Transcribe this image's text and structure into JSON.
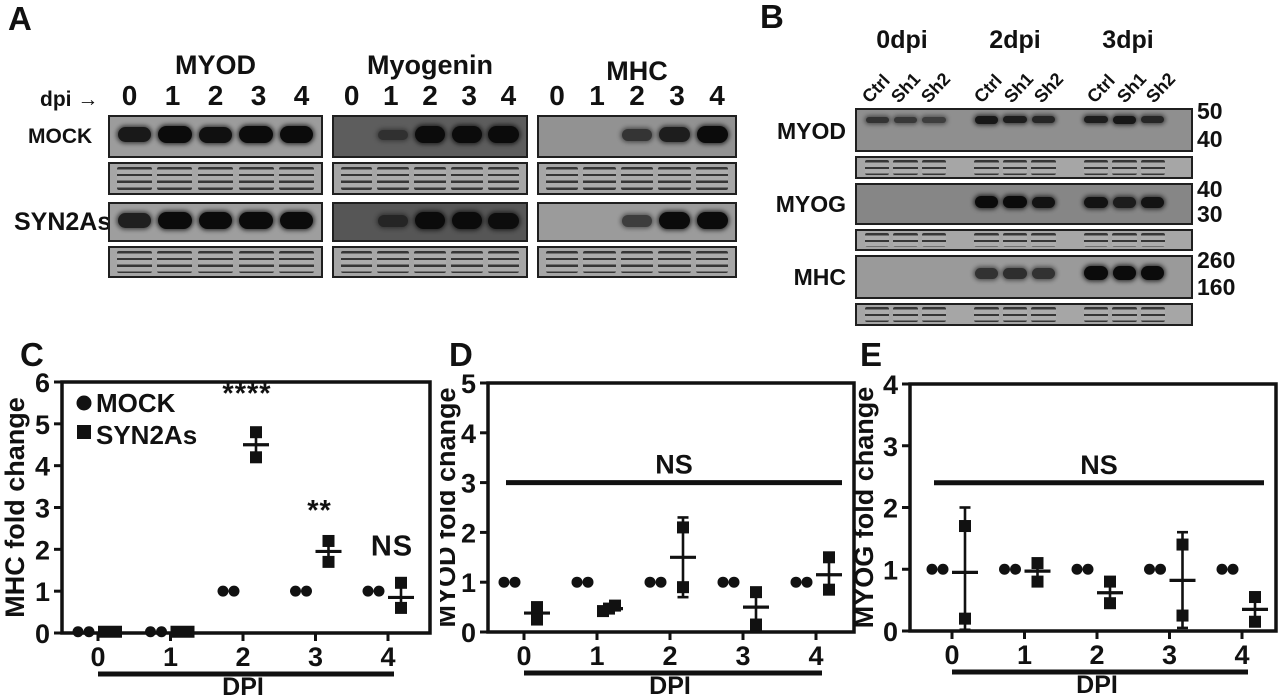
{
  "figure": {
    "panel_a": {
      "label": "A",
      "dpi_row_label": "dpi →",
      "lane_numbers": [
        "0",
        "1",
        "2",
        "3",
        "4"
      ],
      "row_labels": {
        "top": "MOCK",
        "bottom": "SYN2As"
      },
      "columns": [
        {
          "title": "MYOD",
          "mock": {
            "bg": "#9c9c9c",
            "bands": [
              0.85,
              1,
              0.95,
              1,
              1
            ]
          },
          "syn": {
            "bg": "#9e9e9e",
            "bands": [
              0.8,
              1,
              1,
              1,
              1
            ]
          }
        },
        {
          "title": "Myogenin",
          "mock": {
            "bg": "#5d5d5d",
            "bands": [
              0,
              0.35,
              1,
              1,
              1
            ]
          },
          "syn": {
            "bg": "#565656",
            "bands": [
              0,
              0.5,
              1,
              1,
              0.95
            ]
          }
        },
        {
          "title": "MHC",
          "mock": {
            "bg": "#929292",
            "bands": [
              0,
              0,
              0.55,
              0.8,
              1
            ]
          },
          "syn": {
            "bg": "#9b9b9b",
            "bands": [
              0,
              0,
              0.5,
              1,
              1
            ]
          }
        }
      ]
    },
    "panel_b": {
      "label": "B",
      "group_headers": [
        "0dpi",
        "2dpi",
        "3dpi"
      ],
      "lane_labels": [
        "Ctrl",
        "Sh1",
        "Sh2"
      ],
      "rows": [
        {
          "label": "MYOD",
          "mw": [
            "50",
            "40"
          ],
          "bg": "#8f8f8f",
          "band_pos": 0.24,
          "band_base": 7,
          "bands": [
            0.55,
            0.5,
            0.45,
            0.85,
            0.8,
            0.7,
            0.8,
            0.85,
            0.7
          ]
        },
        {
          "label": "MYOG",
          "mw": [
            "40",
            "30"
          ],
          "bg": "#868686",
          "band_pos": 0.45,
          "band_base": 10,
          "bands": [
            0,
            0,
            0,
            1,
            1,
            0.9,
            0.9,
            0.8,
            0.9
          ]
        },
        {
          "label": "MHC",
          "mw": [
            "260",
            "160"
          ],
          "bg": "#9a9a9a",
          "band_pos": 0.4,
          "band_base": 12,
          "bands": [
            0,
            0,
            0,
            0.6,
            0.65,
            0.6,
            1,
            1,
            1
          ]
        }
      ]
    }
  },
  "chart_data": [
    {
      "panel_label": "C",
      "type": "scatter",
      "ylabel": "MHC fold change",
      "xlabel": "DPI",
      "ylim": [
        0,
        6
      ],
      "yticks": [
        "0",
        "1",
        "2",
        "3",
        "4",
        "5",
        "6"
      ],
      "xticks": [
        "0",
        "1",
        "2",
        "3",
        "4"
      ],
      "legend": [
        {
          "marker": "circle",
          "label": "MOCK"
        },
        {
          "marker": "square",
          "label": "SYN2As"
        }
      ],
      "series": [
        {
          "name": "MOCK",
          "marker": "circle"
        },
        {
          "name": "SYN2As",
          "marker": "square"
        }
      ],
      "groups": [
        {
          "x": "0",
          "mock": [
            0.03,
            0.03
          ],
          "syn": [
            0.03,
            0.03
          ],
          "mean": null,
          "err": null,
          "sig": null
        },
        {
          "x": "1",
          "mock": [
            0.03,
            0.03
          ],
          "syn": [
            0.03,
            0.03
          ],
          "mean": null,
          "err": null,
          "sig": null
        },
        {
          "x": "2",
          "mock": [
            1,
            1
          ],
          "syn": [
            4.2,
            4.8
          ],
          "mean": 4.5,
          "err": [
            4.25,
            4.75
          ],
          "sig": {
            "text": "****",
            "y": 5.5
          }
        },
        {
          "x": "3",
          "mock": [
            1,
            1
          ],
          "syn": [
            1.7,
            2.2
          ],
          "mean": 1.95,
          "err": [
            1.72,
            2.18
          ],
          "sig": {
            "text": "**",
            "y": 2.7
          }
        },
        {
          "x": "4",
          "mock": [
            1,
            1
          ],
          "syn": [
            0.6,
            1.2
          ],
          "mean": 0.85,
          "err": [
            0.62,
            1.1
          ],
          "sig": {
            "text": "NS",
            "y": 1.85
          }
        }
      ]
    },
    {
      "panel_label": "D",
      "type": "scatter",
      "ylabel": "MYOD fold change",
      "xlabel": "DPI",
      "ylim": [
        0,
        5
      ],
      "yticks": [
        "0",
        "1",
        "2",
        "3",
        "4",
        "5"
      ],
      "xticks": [
        "0",
        "1",
        "2",
        "3",
        "4"
      ],
      "ns_bar": {
        "y": 3.0,
        "label": "NS"
      },
      "series": [
        {
          "name": "MOCK",
          "marker": "circle"
        },
        {
          "name": "SYN2As",
          "marker": "square"
        }
      ],
      "groups": [
        {
          "x": "0",
          "mock": [
            1,
            1
          ],
          "syn": [
            0.25,
            0.5
          ],
          "mean": 0.38,
          "err": [
            0.2,
            0.55
          ],
          "sig": null
        },
        {
          "x": "1",
          "mock": [
            1,
            1
          ],
          "syn": [
            0.42,
            0.47,
            0.53
          ],
          "mean": 0.47,
          "err": null,
          "sig": null
        },
        {
          "x": "2",
          "mock": [
            1,
            1
          ],
          "syn": [
            0.9,
            2.1
          ],
          "mean": 1.5,
          "err": [
            0.7,
            2.3
          ],
          "sig": null
        },
        {
          "x": "3",
          "mock": [
            1,
            1
          ],
          "syn": [
            0.15,
            0.8
          ],
          "mean": 0.5,
          "err": [
            0.2,
            0.75
          ],
          "sig": null
        },
        {
          "x": "4",
          "mock": [
            1,
            1
          ],
          "syn": [
            0.85,
            1.5
          ],
          "mean": 1.15,
          "err": [
            0.85,
            1.45
          ],
          "sig": null
        }
      ]
    },
    {
      "panel_label": "E",
      "type": "scatter",
      "ylabel": "MYOG fold change",
      "xlabel": "DPI",
      "ylim": [
        0,
        4
      ],
      "yticks": [
        "0",
        "1",
        "2",
        "3",
        "4"
      ],
      "xticks": [
        "0",
        "1",
        "2",
        "3",
        "4"
      ],
      "ns_bar": {
        "y": 2.4,
        "label": "NS"
      },
      "series": [
        {
          "name": "MOCK",
          "marker": "circle"
        },
        {
          "name": "SYN2As",
          "marker": "square"
        }
      ],
      "groups": [
        {
          "x": "0",
          "mock": [
            1,
            1
          ],
          "syn": [
            0.2,
            1.7
          ],
          "mean": 0.95,
          "err": [
            0.02,
            2.0
          ],
          "sig": null
        },
        {
          "x": "1",
          "mock": [
            1,
            1
          ],
          "syn": [
            0.8,
            1.1
          ],
          "mean": 0.97,
          "err": [
            0.78,
            1.12
          ],
          "sig": null
        },
        {
          "x": "2",
          "mock": [
            1,
            1
          ],
          "syn": [
            0.45,
            0.8
          ],
          "mean": 0.62,
          "err": [
            0.42,
            0.8
          ],
          "sig": null
        },
        {
          "x": "3",
          "mock": [
            1,
            1
          ],
          "syn": [
            0.25,
            1.4
          ],
          "mean": 0.82,
          "err": [
            0.05,
            1.6
          ],
          "sig": null
        },
        {
          "x": "4",
          "mock": [
            1,
            1
          ],
          "syn": [
            0.15,
            0.55
          ],
          "mean": 0.35,
          "err": [
            0.12,
            0.58
          ],
          "sig": null
        }
      ]
    }
  ]
}
